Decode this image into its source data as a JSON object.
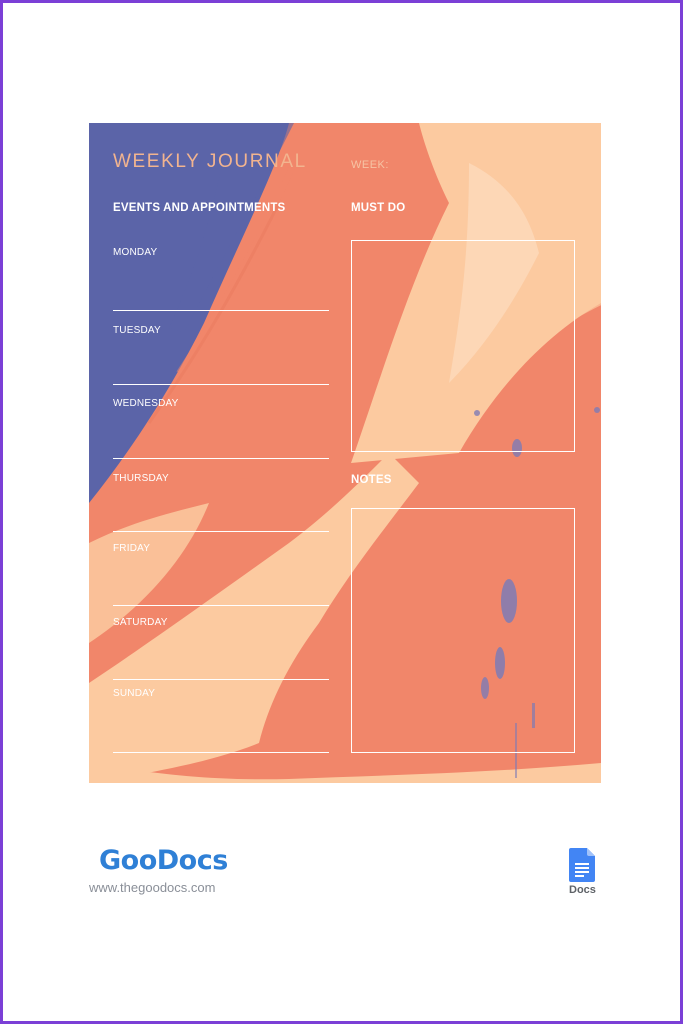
{
  "journal": {
    "title": "WEEKLY JOURNAL",
    "week_label": "WEEK:",
    "events_heading": "EVENTS AND APPOINTMENTS",
    "must_do_heading": "MUST DO",
    "notes_heading": "NOTES",
    "days": [
      "MONDAY",
      "TUESDAY",
      "WEDNESDAY",
      "THURSDAY",
      "FRIDAY",
      "SATURDAY",
      "SUNDAY"
    ]
  },
  "footer": {
    "brand": "GooDocs",
    "website": "www.thegoodocs.com",
    "app_label": "Docs",
    "app_icon": "google-docs-icon"
  },
  "colors": {
    "frame": "#7b3fd6",
    "indigo": "#5b64a8",
    "coral": "#f1866a",
    "peach": "#fccaa0",
    "brand_blue": "#2f80d6"
  }
}
